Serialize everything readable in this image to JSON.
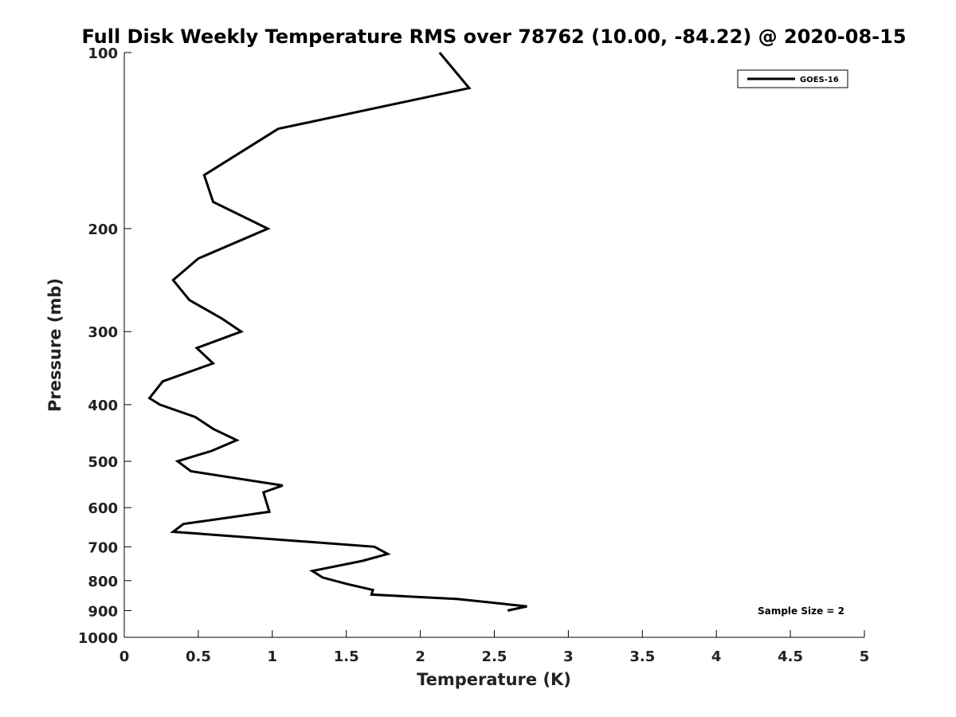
{
  "chart_data": {
    "type": "line",
    "title": "Full Disk Weekly Temperature RMS over 78762 (10.00, -84.22) @ 2020-08-15",
    "xlabel": "Temperature (K)",
    "ylabel": "Pressure (mb)",
    "xlim": [
      0,
      5
    ],
    "ylim": [
      100,
      1000
    ],
    "y_scale": "log",
    "y_reversed": true,
    "x_ticks": [
      0,
      0.5,
      1,
      1.5,
      2,
      2.5,
      3,
      3.5,
      4,
      4.5,
      5
    ],
    "x_tick_labels": [
      "0",
      "0.5",
      "1",
      "1.5",
      "2",
      "2.5",
      "3",
      "3.5",
      "4",
      "4.5",
      "5"
    ],
    "y_ticks": [
      100,
      200,
      300,
      400,
      500,
      600,
      700,
      800,
      900,
      1000
    ],
    "y_tick_labels": [
      "100",
      "200",
      "300",
      "400",
      "500",
      "600",
      "700",
      "800",
      "900",
      "1000"
    ],
    "grid": false,
    "legend_position": "top-right",
    "series": [
      {
        "name": "GOES-16",
        "color": "#000000",
        "points": [
          {
            "x": 2.13,
            "y": 100
          },
          {
            "x": 2.33,
            "y": 115
          },
          {
            "x": 1.04,
            "y": 135
          },
          {
            "x": 0.54,
            "y": 162
          },
          {
            "x": 0.6,
            "y": 180
          },
          {
            "x": 0.97,
            "y": 200
          },
          {
            "x": 0.5,
            "y": 225
          },
          {
            "x": 0.33,
            "y": 245
          },
          {
            "x": 0.44,
            "y": 265
          },
          {
            "x": 0.66,
            "y": 285
          },
          {
            "x": 0.79,
            "y": 300
          },
          {
            "x": 0.49,
            "y": 320
          },
          {
            "x": 0.6,
            "y": 340
          },
          {
            "x": 0.26,
            "y": 365
          },
          {
            "x": 0.17,
            "y": 390
          },
          {
            "x": 0.24,
            "y": 400
          },
          {
            "x": 0.48,
            "y": 420
          },
          {
            "x": 0.6,
            "y": 440
          },
          {
            "x": 0.76,
            "y": 460
          },
          {
            "x": 0.59,
            "y": 480
          },
          {
            "x": 0.36,
            "y": 500
          },
          {
            "x": 0.45,
            "y": 520
          },
          {
            "x": 1.07,
            "y": 550
          },
          {
            "x": 0.94,
            "y": 565
          },
          {
            "x": 0.98,
            "y": 610
          },
          {
            "x": 0.4,
            "y": 640
          },
          {
            "x": 0.33,
            "y": 660
          },
          {
            "x": 1.69,
            "y": 700
          },
          {
            "x": 1.78,
            "y": 720
          },
          {
            "x": 1.61,
            "y": 740
          },
          {
            "x": 1.27,
            "y": 770
          },
          {
            "x": 1.34,
            "y": 790
          },
          {
            "x": 1.5,
            "y": 810
          },
          {
            "x": 1.68,
            "y": 830
          },
          {
            "x": 1.67,
            "y": 845
          },
          {
            "x": 2.25,
            "y": 860
          },
          {
            "x": 2.72,
            "y": 885
          },
          {
            "x": 2.59,
            "y": 900
          }
        ]
      }
    ],
    "annotations": [
      {
        "text": "Sample Size = 2",
        "position": "bottom-right"
      }
    ]
  }
}
